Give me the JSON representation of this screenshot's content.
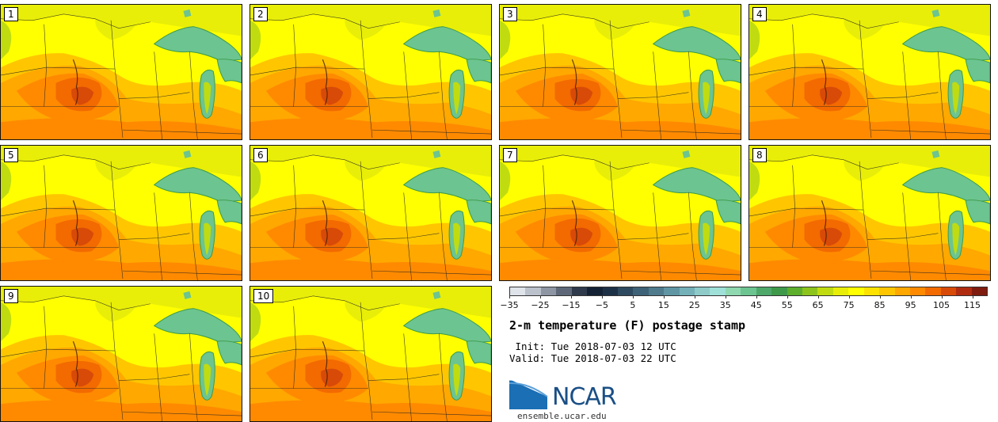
{
  "panels": [
    {
      "label": "1"
    },
    {
      "label": "2"
    },
    {
      "label": "3"
    },
    {
      "label": "4"
    },
    {
      "label": "5"
    },
    {
      "label": "6"
    },
    {
      "label": "7"
    },
    {
      "label": "8"
    },
    {
      "label": "9"
    },
    {
      "label": "10"
    }
  ],
  "colorbar": {
    "levels": [
      "-35",
      "-30",
      "-25",
      "-20",
      "-15",
      "-10",
      "-5",
      "0",
      "5",
      "10",
      "15",
      "20",
      "25",
      "30",
      "35",
      "40",
      "45",
      "50",
      "55",
      "60",
      "65",
      "70",
      "75",
      "80",
      "85",
      "90",
      "95",
      "100",
      "105",
      "110",
      "115",
      "120"
    ],
    "colors": [
      "#dfe3ea",
      "#bcc2cc",
      "#8e96a4",
      "#5e6878",
      "#2f3b4c",
      "#152235",
      "#1d3146",
      "#2e4a60",
      "#3e6277",
      "#4f7b8d",
      "#6096a4",
      "#74b0b8",
      "#8dcac8",
      "#9fe0d8",
      "#8fd8b0",
      "#6cc490",
      "#4ea86a",
      "#3e9a4a",
      "#5cae2c",
      "#8cc41c",
      "#c0dc10",
      "#e8ee08",
      "#ffff00",
      "#fde200",
      "#ffc600",
      "#ffa800",
      "#ff8a00",
      "#f26a00",
      "#d84a08",
      "#b02c10",
      "#7e1c10"
    ],
    "tick_labels": [
      "−35",
      "−25",
      "−15",
      "−5",
      "5",
      "15",
      "25",
      "35",
      "45",
      "55",
      "65",
      "75",
      "85",
      "95",
      "105",
      "115"
    ]
  },
  "title": "2-m temperature (F) postage stamp",
  "init_line": " Init: Tue 2018-07-03 12 UTC",
  "valid_line": "Valid: Tue 2018-07-03 22 UTC",
  "logo": {
    "text": "NCAR",
    "color": "#1a4f86"
  },
  "site": "ensemble.ucar.edu",
  "map_colors": {
    "yellow": "#ffff00",
    "lightyellow": "#e8ee08",
    "lime": "#c0dc10",
    "green": "#8cc41c",
    "gold": "#ffc600",
    "orange1": "#ffa800",
    "orange2": "#ff8a00",
    "orange3": "#f26a00",
    "red": "#d84a08",
    "lake": "#6cc490",
    "lakeEdge": "#3e9a4a"
  }
}
